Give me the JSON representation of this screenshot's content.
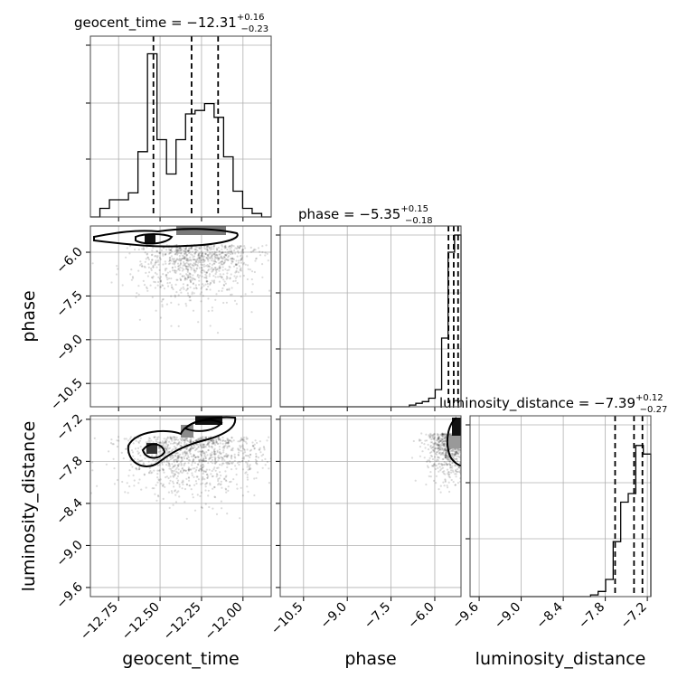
{
  "figure": {
    "type": "corner_plot",
    "parameters": [
      "geocent_time",
      "phase",
      "luminosity_distance"
    ]
  },
  "titles": {
    "geocent_time": {
      "lead": "geocent_time = ",
      "value": "−12.31",
      "upper": "+0.16",
      "lower": "−0.23"
    },
    "phase": {
      "lead": "phase = ",
      "value": "−5.35",
      "upper": "+0.15",
      "lower": "−0.18"
    },
    "luminosity_distance": {
      "lead": "luminosity_distance = ",
      "value": "−7.39",
      "upper": "+0.12",
      "lower": "−0.27"
    }
  },
  "axis_labels": {
    "geocent_time": "geocent_time",
    "phase": "phase",
    "luminosity_distance": "luminosity_distance"
  },
  "chart_data": {
    "type": "scatter",
    "grid": true,
    "ranges": {
      "geocent_time": [
        -12.92,
        -11.83
      ],
      "phase": [
        -11.3,
        -5.1
      ],
      "luminosity_distance": [
        -9.73,
        -7.15
      ]
    },
    "ticks": {
      "geocent_time": {
        "values": [
          -12.75,
          -12.5,
          -12.25,
          -12.0
        ],
        "labels": [
          "−12.75",
          "−12.50",
          "−12.25",
          "−12.00"
        ]
      },
      "phase": {
        "values": [
          -10.5,
          -9.0,
          -7.5,
          -6.0
        ],
        "labels": [
          "−10.5",
          "−9.0",
          "−7.5",
          "−6.0"
        ]
      },
      "luminosity_distance": {
        "values": [
          -9.6,
          -9.0,
          -8.4,
          -7.8,
          -7.2
        ],
        "labels": [
          "−9.6",
          "−9.0",
          "−8.4",
          "−7.8",
          "−7.2"
        ]
      }
    },
    "quantiles": {
      "geocent_time": [
        -12.54,
        -12.31,
        -12.15
      ],
      "phase": [
        -5.53,
        -5.35,
        -5.2
      ],
      "luminosity_distance": [
        -7.66,
        -7.39,
        -7.27
      ]
    },
    "histograms": {
      "geocent_time": {
        "counts": [
          0.0,
          0.05,
          0.1,
          0.1,
          0.14,
          0.38,
          0.95,
          0.45,
          0.25,
          0.45,
          0.6,
          0.62,
          0.66,
          0.58,
          0.35,
          0.15,
          0.05,
          0.02,
          0.0
        ]
      },
      "phase": {
        "counts": [
          0,
          0,
          0,
          0,
          0,
          0,
          0,
          0,
          0,
          0,
          0,
          0,
          0,
          0,
          0,
          0,
          0,
          0,
          0,
          0,
          0.01,
          0.02,
          0.03,
          0.05,
          0.1,
          0.4,
          0.9,
          1.0
        ]
      },
      "luminosity_distance": {
        "counts": [
          0,
          0,
          0,
          0,
          0,
          0,
          0,
          0,
          0,
          0,
          0,
          0,
          0,
          0,
          0,
          0,
          0.01,
          0.03,
          0.1,
          0.32,
          0.55,
          0.6,
          0.88,
          0.83
        ]
      }
    },
    "scatter_sets": {
      "geocent_time_vs_phase": {
        "center": [
          -12.28,
          -5.75
        ],
        "spread": [
          0.18,
          0.9
        ],
        "n": 900
      },
      "geocent_time_vs_luminosity_distance": {
        "center": [
          -12.3,
          -7.45
        ],
        "spread": [
          0.22,
          0.35
        ],
        "n": 1100
      },
      "phase_vs_luminosity_distance": {
        "center": [
          -5.4,
          -7.4
        ],
        "spread": [
          0.45,
          0.3
        ],
        "n": 800
      }
    }
  }
}
